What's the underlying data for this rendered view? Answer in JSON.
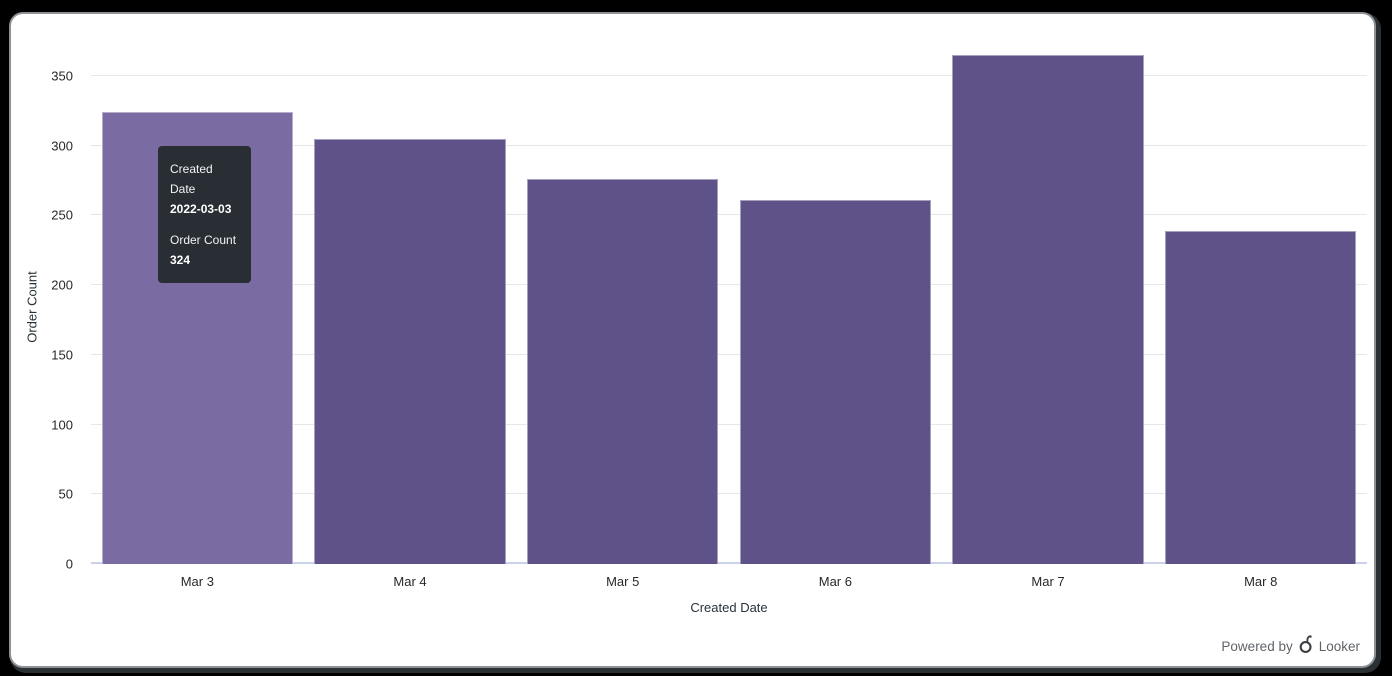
{
  "chart_data": {
    "type": "bar",
    "title": "",
    "categories": [
      "Mar 3",
      "Mar 4",
      "Mar 5",
      "Mar 6",
      "Mar 7",
      "Mar 8"
    ],
    "values": [
      324,
      305,
      276,
      261,
      365,
      239
    ],
    "xlabel": "Created Date",
    "ylabel": "Order Count",
    "yticks": [
      0,
      50,
      100,
      150,
      200,
      250,
      300,
      350
    ],
    "ylim": [
      0,
      370
    ],
    "grid": true,
    "legend": "none",
    "hovered_index": 0,
    "colors": {
      "bar": "#5e5289",
      "bar_hover": "#7a6ca3",
      "grid": "#e7e7e7",
      "baseline": "#c9d2e8",
      "tooltip_bg": "#282e33",
      "axis_text": "#282828",
      "footer_text": "#5f6368",
      "panel_bg": "#ffffff",
      "frame_bg": "#000000"
    }
  },
  "tooltip": {
    "rows": [
      {
        "label": "Created Date",
        "value": "2022-03-03"
      },
      {
        "label": "Order Count",
        "value": "324"
      }
    ]
  },
  "footer": {
    "powered_by": "Powered by",
    "brand": "Looker"
  }
}
